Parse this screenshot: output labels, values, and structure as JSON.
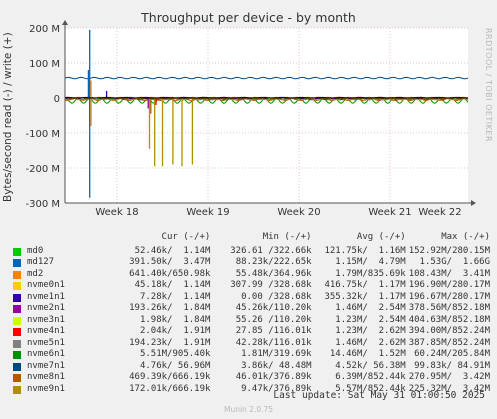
{
  "title": "Throughput per device - by month",
  "side_label": "RRDTOOL / TOBI OETIKER",
  "footer_update": "Last update: Sat May 31 01:00:50 2025",
  "footer_brand": "Munin 2.0.75",
  "legend_headers": {
    "cur": "Cur (-/+)",
    "min": "Min (-/+)",
    "avg": "Avg (-/+)",
    "max": "Max (-/+)"
  },
  "legend_rows": [
    {
      "name": "md0",
      "color": "#00cc00",
      "cur": "52.46k/  1.14M",
      "min": "326.61 /322.66k",
      "avg": "121.75k/  1.16M",
      "max": "152.92M/280.15M"
    },
    {
      "name": "md127",
      "color": "#0066b3",
      "cur": "391.50k/  3.47M",
      "min": "88.23k/222.65k",
      "avg": "1.15M/  4.79M",
      "max": "1.53G/  1.66G"
    },
    {
      "name": "md2",
      "color": "#ff8000",
      "cur": "641.40k/650.98k",
      "min": "55.48k/364.96k",
      "avg": "1.79M/835.69k",
      "max": "108.43M/  3.41M"
    },
    {
      "name": "nvme0n1",
      "color": "#ffcc00",
      "cur": "45.18k/  1.14M",
      "min": "307.99 /328.68k",
      "avg": "416.75k/  1.17M",
      "max": "196.90M/280.17M"
    },
    {
      "name": "nvme1n1",
      "color": "#330099",
      "cur": "7.28k/  1.14M",
      "min": "0.00 /328.68k",
      "avg": "355.32k/  1.17M",
      "max": "196.67M/280.17M"
    },
    {
      "name": "nvme2n1",
      "color": "#990099",
      "cur": "193.26k/  1.84M",
      "min": "45.26k/110.20k",
      "avg": "1.46M/  2.54M",
      "max": "378.56M/852.18M"
    },
    {
      "name": "nvme3n1",
      "color": "#ccff00",
      "cur": "1.98k/  1.84M",
      "min": "55.26 /110.20k",
      "avg": "1.23M/  2.54M",
      "max": "404.63M/852.18M"
    },
    {
      "name": "nvme4n1",
      "color": "#ff0000",
      "cur": "2.04k/  1.91M",
      "min": "27.85 /116.01k",
      "avg": "1.23M/  2.62M",
      "max": "394.00M/852.24M"
    },
    {
      "name": "nvme5n1",
      "color": "#808080",
      "cur": "194.23k/  1.91M",
      "min": "42.28k/116.01k",
      "avg": "1.46M/  2.62M",
      "max": "387.85M/852.24M"
    },
    {
      "name": "nvme6n1",
      "color": "#008f00",
      "cur": "5.51M/905.40k",
      "min": "1.81M/319.69k",
      "avg": "14.46M/  1.52M",
      "max": "60.24M/205.84M"
    },
    {
      "name": "nvme7n1",
      "color": "#00487d",
      "cur": "4.76k/ 56.96M",
      "min": "3.86k/ 48.48M",
      "avg": "4.52k/ 56.38M",
      "max": "99.83k/ 84.91M"
    },
    {
      "name": "nvme8n1",
      "color": "#b35a00",
      "cur": "469.39k/666.19k",
      "min": "46.01k/376.89k",
      "avg": "6.39M/852.44k",
      "max": "270.95M/  3.42M"
    },
    {
      "name": "nvme9n1",
      "color": "#b38f00",
      "cur": "172.01k/666.19k",
      "min": "9.47k/376.89k",
      "avg": "5.57M/852.44k",
      "max": "225.32M/  3.42M"
    }
  ],
  "chart_data": {
    "type": "line",
    "title": "Throughput per device - by month",
    "ylabel": "Bytes/second read (-) / write (+)",
    "ylim": [
      -300000000,
      200000000
    ],
    "yticks": [
      200000000,
      100000000,
      0,
      -100000000,
      -200000000,
      -300000000
    ],
    "ytick_labels": [
      "200 M",
      "100 M",
      "0",
      "-100 M",
      "-200 M",
      "-300 M"
    ],
    "xlim": [
      0,
      31
    ],
    "x_ticks": [
      {
        "label": "Week 18",
        "day": 4
      },
      {
        "label": "Week 19",
        "day": 11
      },
      {
        "label": "Week 20",
        "day": 18
      },
      {
        "label": "Week 21",
        "day": 25
      },
      {
        "label": "Week 22",
        "day": 32
      }
    ],
    "grid": true,
    "series": [
      {
        "name": "nvme7n1",
        "color": "#00487d",
        "baseline": 57000000,
        "amp": 2000000,
        "period": 1.0
      },
      {
        "name": "nvme6n1",
        "color": "#008f00",
        "baseline": -8000000,
        "amp": 7000000,
        "period": 0.9
      },
      {
        "name": "md0",
        "color": "#00cc00",
        "baseline": -2000000,
        "amp": 2500000,
        "period": 0.7
      },
      {
        "name": "nvme2n1",
        "color": "#990099",
        "baseline": -3000000,
        "amp": 2000000,
        "period": 1.1
      },
      {
        "name": "nvme8n1",
        "color": "#b35a00",
        "baseline": -4000000,
        "amp": 3000000,
        "period": 1.2
      },
      {
        "name": "nvme9n1",
        "color": "#b38f00",
        "baseline": -3000000,
        "amp": 2000000,
        "period": 1.3
      },
      {
        "name": "md2",
        "color": "#ff8000",
        "baseline": 1000000,
        "amp": 1000000,
        "period": 0.8
      },
      {
        "name": "nvme1n1",
        "color": "#330099",
        "baseline": 1000000,
        "amp": 800000,
        "period": 1.5
      }
    ],
    "spikes": [
      {
        "series": "md127",
        "color": "#0066b3",
        "day": 1.9,
        "value": 195000000
      },
      {
        "series": "md127",
        "color": "#0066b3",
        "day": 1.9,
        "value": -285000000
      },
      {
        "series": "md127",
        "color": "#0066b3",
        "day": 1.8,
        "value": 80000000
      },
      {
        "series": "md2",
        "color": "#ff8000",
        "day": 2.0,
        "value": 50000000
      },
      {
        "series": "md2",
        "color": "#ff8000",
        "day": 2.0,
        "value": -80000000
      },
      {
        "series": "nvme1n1",
        "color": "#330099",
        "day": 3.2,
        "value": 20000000
      },
      {
        "series": "nvme9n1",
        "color": "#b38f00",
        "day": 6.5,
        "value": -145000000
      },
      {
        "series": "nvme9n1",
        "color": "#b38f00",
        "day": 6.9,
        "value": -195000000
      },
      {
        "series": "nvme9n1",
        "color": "#b38f00",
        "day": 7.5,
        "value": -195000000
      },
      {
        "series": "nvme9n1",
        "color": "#b38f00",
        "day": 8.3,
        "value": -190000000
      },
      {
        "series": "nvme9n1",
        "color": "#b38f00",
        "day": 9.0,
        "value": -195000000
      },
      {
        "series": "nvme9n1",
        "color": "#b38f00",
        "day": 9.8,
        "value": -190000000
      },
      {
        "series": "nvme8n1",
        "color": "#b35a00",
        "day": 6.6,
        "value": -45000000
      },
      {
        "series": "nvme2n1",
        "color": "#990099",
        "day": 6.4,
        "value": -30000000
      },
      {
        "series": "nvme4n1",
        "color": "#ff0000",
        "day": 7.0,
        "value": -20000000
      }
    ]
  }
}
